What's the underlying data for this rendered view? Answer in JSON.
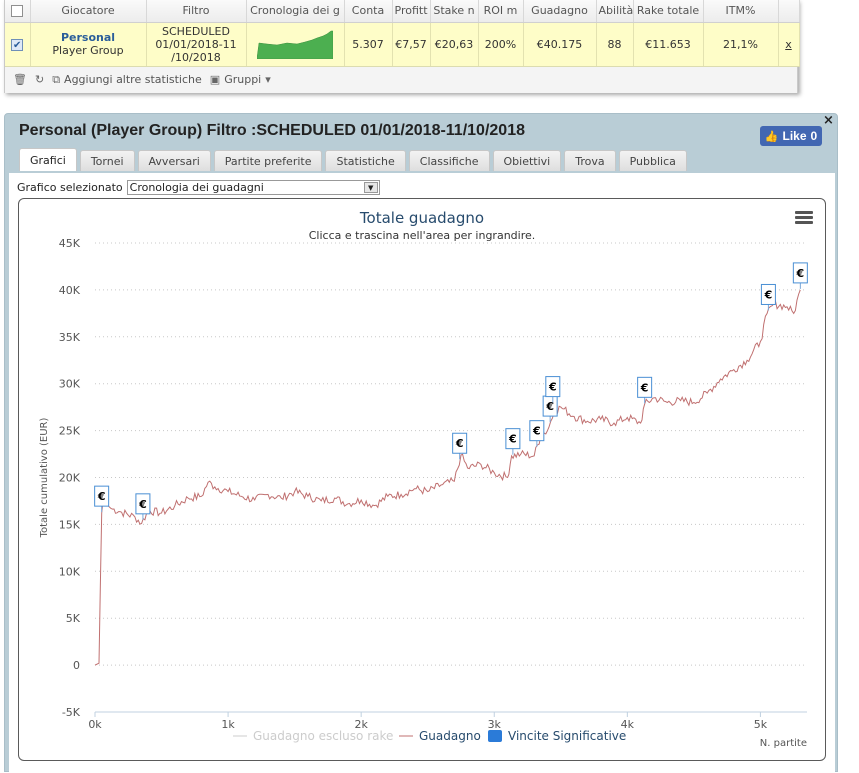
{
  "table": {
    "headers": [
      "Giocatore",
      "Filtro",
      "Cronologia dei g",
      "Conta",
      "Profitt",
      "Stake n",
      "ROI m",
      "Guadagno",
      "Abilità",
      "Rake totale",
      "ITM%"
    ],
    "row": {
      "player_name": "Personal",
      "player_group": "Player Group",
      "filter_line1": "SCHEDULED",
      "filter_line2": "01/01/2018-11",
      "filter_line3": "/10/2018",
      "conta": "5.307",
      "profitto": "€7,57",
      "stake": "€20,63",
      "roi": "200%",
      "guadagno": "€40.175",
      "abilita": "88",
      "rake": "€11.653",
      "itm": "21,1%",
      "remove": "x"
    },
    "toolbar": {
      "add_stats": "Aggiungi altre statistiche",
      "groups": "Gruppi"
    }
  },
  "report": {
    "title": "Personal (Player Group) Filtro :SCHEDULED 01/01/2018-11/10/2018",
    "like_label": "Like",
    "like_count": "0",
    "close": "×",
    "tabs": [
      "Grafici",
      "Tornei",
      "Avversari",
      "Partite preferite",
      "Statistiche",
      "Classifiche",
      "Obiettivi",
      "Trova",
      "Pubblica"
    ],
    "chart_select_label": "Grafico selezionato",
    "chart_select_value": "Cronologia dei guadagni"
  },
  "chart_data": {
    "type": "line",
    "title": "Totale guadagno",
    "subtitle": "Clicca e trascina nell'area per ingrandire.",
    "ylabel": "Totale cumulativo (EUR)",
    "xlabel": "N. partite",
    "xlim": [
      0,
      5350
    ],
    "ylim": [
      -5000,
      45000
    ],
    "x_ticks": [
      "0k",
      "1k",
      "2k",
      "3k",
      "4k",
      "5k"
    ],
    "y_ticks": [
      "-5K",
      "0",
      "5K",
      "10K",
      "15K",
      "20K",
      "25K",
      "30K",
      "35K",
      "40K",
      "45K"
    ],
    "series": [
      {
        "name": "Guadagno escluso rake",
        "color": "#cccccc",
        "values": []
      },
      {
        "name": "Guadagno",
        "color": "#c07070",
        "x": [
          0,
          30,
          50,
          60,
          120,
          200,
          300,
          350,
          400,
          500,
          600,
          700,
          800,
          850,
          900,
          1000,
          1100,
          1200,
          1300,
          1400,
          1500,
          1600,
          1700,
          1800,
          1900,
          2000,
          2100,
          2200,
          2300,
          2400,
          2500,
          2600,
          2700,
          2750,
          2800,
          2900,
          3000,
          3100,
          3130,
          3200,
          3300,
          3350,
          3400,
          3450,
          3500,
          3600,
          3700,
          3800,
          3900,
          4000,
          4100,
          4130,
          4200,
          4300,
          4400,
          4500,
          4600,
          4700,
          4800,
          4900,
          5000,
          5050,
          5100,
          5200,
          5250,
          5300
        ],
        "values": [
          0,
          200,
          16200,
          17500,
          16700,
          16300,
          15800,
          15100,
          16500,
          16200,
          17000,
          17800,
          18000,
          19500,
          19000,
          18500,
          18000,
          17600,
          18200,
          17800,
          18500,
          18000,
          17500,
          17800,
          17200,
          17600,
          17000,
          18000,
          18200,
          18800,
          18500,
          19200,
          19600,
          22400,
          21000,
          21400,
          20500,
          20000,
          22300,
          22500,
          22300,
          24500,
          25000,
          27000,
          27500,
          26500,
          26000,
          26200,
          25800,
          26400,
          25800,
          27800,
          28500,
          28000,
          28200,
          28000,
          29000,
          30500,
          31500,
          32500,
          34500,
          37500,
          38500,
          38200,
          37500,
          40000
        ]
      }
    ],
    "significant_wins": {
      "name": "Vincite Significative",
      "color": "#2b7bd8",
      "label": "€",
      "x": [
        50,
        360,
        2740,
        3140,
        3320,
        3420,
        3440,
        4130,
        5060,
        5300
      ]
    }
  }
}
